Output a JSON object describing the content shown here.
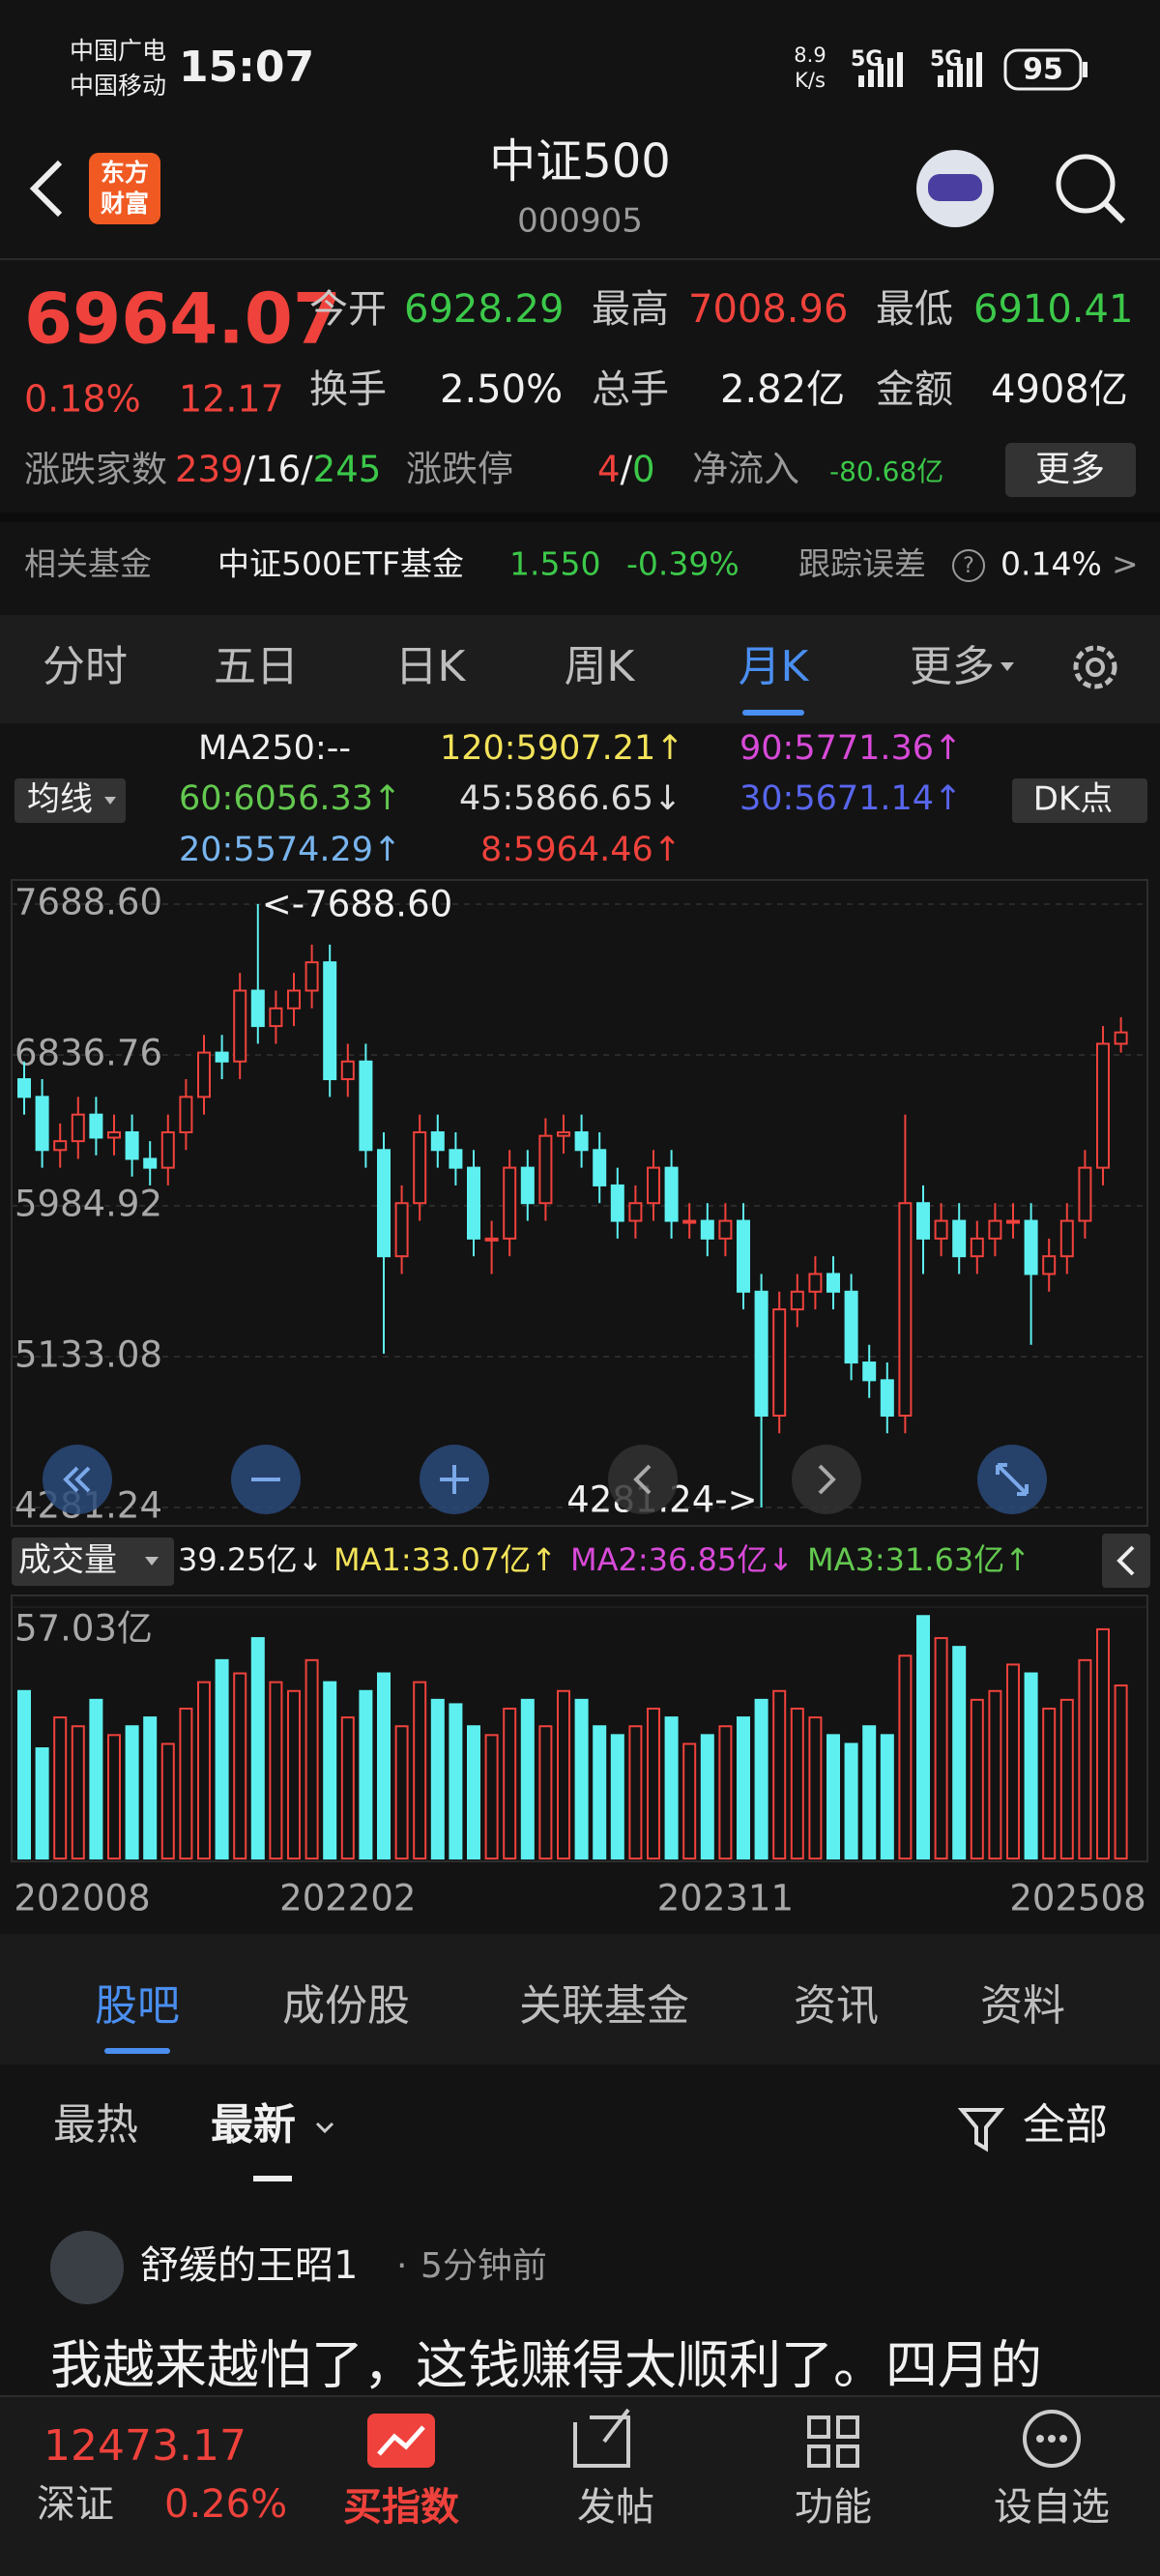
{
  "status_bar": {
    "carrier1": "中国广电",
    "carrier2": "中国移动",
    "time": "15:07",
    "speed": "8.9",
    "speed_unit": "K/s",
    "net1": "5G",
    "net2": "5G",
    "battery": "95"
  },
  "header": {
    "logo1": "东方",
    "logo2": "财富",
    "title": "中证500",
    "code": "000905"
  },
  "quote": {
    "price": "6964.07",
    "change_pct": "0.18%",
    "change": "12.17",
    "row1": [
      {
        "label": "今开",
        "value": "6928.29"
      },
      {
        "label": "最高",
        "value": "7008.96"
      },
      {
        "label": "最低",
        "value": "6910.41"
      }
    ],
    "row2": [
      {
        "label": "换手",
        "value": "2.50%"
      },
      {
        "label": "总手",
        "value": "2.82亿"
      },
      {
        "label": "金额",
        "value": "4908亿"
      }
    ]
  },
  "breadth": {
    "label": "涨跌家数",
    "up": "239",
    "sep": "/",
    "flat": "16",
    "down": "245",
    "limit_label": "涨跌停",
    "limit_up": "4",
    "limit_down": "0",
    "flow_label": "净流入",
    "flow": "-80.68亿",
    "more": "更多"
  },
  "fund": {
    "label": "相关基金",
    "name": "中证500ETF基金",
    "price": "1.550",
    "change": "-0.39%",
    "tracking_label": "跟踪误差",
    "help": "?",
    "tracking": "0.14%",
    "arrow": ">"
  },
  "period_tabs": {
    "items": [
      "分时",
      "五日",
      "日K",
      "周K",
      "月K",
      "更多"
    ],
    "active": 4
  },
  "ma_button": "均线",
  "dk_button": "DK点",
  "ma_legend": [
    {
      "text": "MA250:--",
      "color": "#eeeeee"
    },
    {
      "text": "120:5907.21↑",
      "color": "#f3e35a"
    },
    {
      "text": "90:5771.36↑",
      "color": "#d84ad8"
    },
    {
      "text": "60:6056.33↑",
      "color": "#63c84f"
    },
    {
      "text": "45:5866.65↓",
      "color": "#dddddd"
    },
    {
      "text": "30:5671.14↑",
      "color": "#5866ee"
    },
    {
      "text": "20:5574.29↑",
      "color": "#78b4ee"
    },
    {
      "text": "8:5964.46↑",
      "color": "#f0423c"
    }
  ],
  "kline": {
    "up_color": "#f0423c",
    "down_color": "#5ef0f0",
    "ylim": [
      4281.24,
      7688.6
    ],
    "yticks": [
      {
        "value": 7688.6,
        "label": "7688.60"
      },
      6836.76,
      5984.92,
      5133.08,
      4281.24
    ],
    "high_note": "<-7688.60",
    "low_note": "4281.24->",
    "categories": [
      "202008",
      null,
      null,
      null,
      null,
      null,
      null,
      null,
      null,
      null,
      null,
      null,
      null,
      null,
      null,
      null,
      null,
      null,
      "202202",
      null,
      null,
      null,
      null,
      null,
      null,
      null,
      null,
      null,
      null,
      null,
      null,
      null,
      null,
      null,
      null,
      null,
      null,
      null,
      null,
      "202311",
      null,
      null,
      null,
      null,
      null,
      null,
      null,
      null,
      null,
      null,
      null,
      null,
      null,
      null,
      null,
      null,
      null,
      null,
      null,
      null,
      "202508",
      null
    ],
    "open": [
      6700,
      6600,
      6300,
      6350,
      6500,
      6370,
      6400,
      6250,
      6200,
      6400,
      6600,
      6850,
      6800,
      7200,
      7000,
      7100,
      7200,
      7360,
      6700,
      6800,
      6300,
      5700,
      6000,
      6400,
      6300,
      6200,
      5800,
      5800,
      6200,
      6000,
      6380,
      6400,
      6300,
      6100,
      5900,
      6000,
      6200,
      5900,
      5900,
      5800,
      5900,
      5500,
      4800,
      5400,
      5500,
      5600,
      5500,
      5100,
      5000,
      4800,
      6000,
      5800,
      5900,
      5700,
      5800,
      5900,
      5900,
      5600,
      5700,
      5900,
      6200,
      6900
    ],
    "high": [
      6800,
      6700,
      6450,
      6600,
      6600,
      6500,
      6500,
      6350,
      6500,
      6700,
      6950,
      6950,
      7300,
      7688.6,
      7200,
      7300,
      7460,
      7460,
      6900,
      6900,
      6400,
      6100,
      6500,
      6500,
      6400,
      6300,
      5900,
      6300,
      6300,
      6480,
      6500,
      6500,
      6400,
      6200,
      6100,
      6300,
      6300,
      6000,
      6000,
      6000,
      6000,
      5600,
      5500,
      5600,
      5700,
      5700,
      5600,
      5200,
      5100,
      6500,
      6100,
      6000,
      6000,
      5900,
      6000,
      6000,
      6000,
      5800,
      6000,
      6300,
      7000,
      7050
    ],
    "low": [
      6500,
      6200,
      6200,
      6250,
      6270,
      6270,
      6150,
      6100,
      6100,
      6300,
      6500,
      6700,
      6700,
      6900,
      6900,
      7000,
      7100,
      6600,
      6600,
      6200,
      5150,
      5600,
      5900,
      6200,
      6100,
      5700,
      5600,
      5700,
      5900,
      5900,
      6280,
      6200,
      6000,
      5800,
      5800,
      5900,
      5800,
      5800,
      5700,
      5700,
      5400,
      4281.24,
      4700,
      5300,
      5400,
      5400,
      5000,
      4900,
      4700,
      4700,
      5600,
      5700,
      5600,
      5600,
      5700,
      5800,
      5200,
      5500,
      5600,
      5800,
      6100,
      6850
    ],
    "close": [
      6600,
      6300,
      6350,
      6500,
      6370,
      6400,
      6250,
      6200,
      6400,
      6600,
      6850,
      6800,
      7200,
      7000,
      7100,
      7200,
      7360,
      6700,
      6800,
      6300,
      5700,
      6000,
      6400,
      6300,
      6200,
      5800,
      5800,
      6200,
      6000,
      6380,
      6400,
      6300,
      6100,
      5900,
      6000,
      6200,
      5900,
      5900,
      5800,
      5900,
      5500,
      4800,
      5400,
      5500,
      5600,
      5500,
      5100,
      5000,
      4800,
      6000,
      5800,
      5900,
      5700,
      5800,
      5900,
      5900,
      5600,
      5700,
      5900,
      6200,
      6900,
      6964.07
    ]
  },
  "volume": {
    "label": "成交量",
    "current": "39.25亿↓",
    "mas": [
      {
        "text": "MA1:33.07亿↑",
        "color": "#f3e35a"
      },
      {
        "text": "MA2:36.85亿↓",
        "color": "#d84ad8"
      },
      {
        "text": "MA3:31.63亿↑",
        "color": "#63c84f"
      }
    ],
    "ylim": [
      0,
      57.03
    ],
    "yticks": [
      {
        "value": 57.03,
        "label": "57.03亿"
      }
    ],
    "values": [
      38,
      25,
      32,
      30,
      36,
      28,
      30,
      32,
      26,
      34,
      40,
      45,
      42,
      50,
      40,
      38,
      45,
      40,
      32,
      38,
      42,
      30,
      40,
      36,
      35,
      30,
      28,
      34,
      36,
      30,
      38,
      36,
      30,
      28,
      30,
      34,
      32,
      26,
      28,
      30,
      32,
      36,
      38,
      34,
      32,
      28,
      26,
      30,
      28,
      46,
      55,
      50,
      48,
      36,
      38,
      44,
      42,
      34,
      36,
      45,
      52,
      39.25
    ]
  },
  "content_tabs": {
    "items": [
      "股吧",
      "成份股",
      "关联基金",
      "资讯",
      "资料"
    ],
    "active": 0
  },
  "filters": {
    "hot": "最热",
    "new": "最新",
    "all": "全部"
  },
  "post": {
    "author": "舒缓的王昭1",
    "sep": "·",
    "time": "5分钟前",
    "text": "我越来越怕了，这钱赚得太顺利了。四月的"
  },
  "bottom_nav": {
    "index_value": "12473.17",
    "index_name": "深证",
    "index_change": "0.26%",
    "items": [
      "买指数",
      "发帖",
      "功能",
      "设自选"
    ]
  }
}
